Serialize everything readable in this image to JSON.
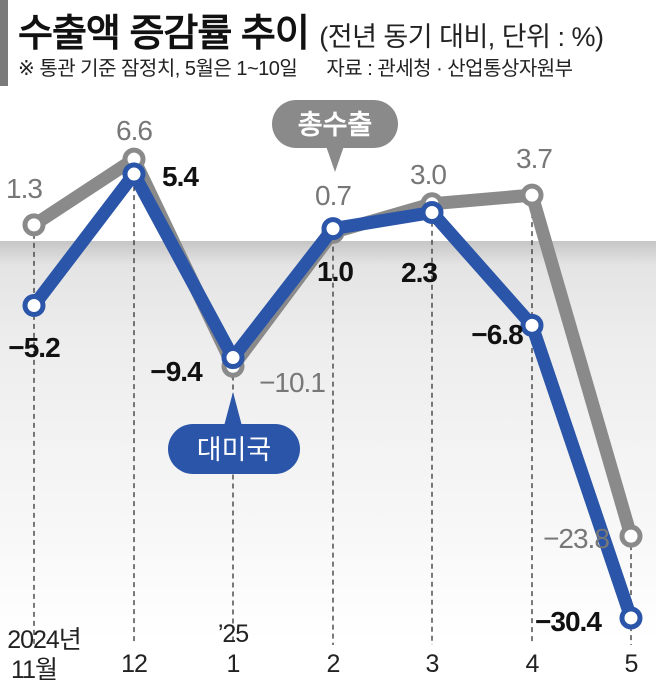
{
  "header": {
    "title": "수출액 증감률 추이",
    "subtitle": "(전년 동기 대비, 단위 : %)",
    "note": "※ 통관 기준 잠정치, 5월은 1~10일",
    "source": "자료 : 관세청 · 산업통상자원부"
  },
  "colors": {
    "total": "#8a8a8a",
    "us": "#2a55a8",
    "header_bar": "#7a7a7a"
  },
  "x_axis": {
    "year_labels": [
      {
        "index": 0,
        "label": "2024년"
      },
      {
        "index": 2,
        "label": "’25"
      }
    ],
    "ticks": [
      "11월",
      "12",
      "1",
      "2",
      "3",
      "4",
      "5"
    ]
  },
  "bubbles": {
    "total": "총수출",
    "us": "대미국"
  },
  "chart_data": {
    "type": "line",
    "title": "수출액 증감률 추이",
    "subtitle": "(전년 동기 대비, 단위 : %)",
    "xlabel": "",
    "ylabel": "%",
    "categories": [
      "2024년 11월",
      "12",
      "’25 1",
      "2",
      "3",
      "4",
      "5"
    ],
    "series": [
      {
        "name": "총수출",
        "values": [
          1.3,
          6.6,
          -10.1,
          0.7,
          3.0,
          3.7,
          -23.8
        ]
      },
      {
        "name": "대미국",
        "values": [
          -5.2,
          5.4,
          -9.4,
          1.0,
          2.3,
          -6.8,
          -30.4
        ]
      }
    ],
    "labels": {
      "총수출": [
        "1.3",
        "6.6",
        "−10.1",
        "0.7",
        "3.0",
        "3.7",
        "−23.8"
      ],
      "대미국": [
        "−5.2",
        "5.4",
        "−9.4",
        "1.0",
        "2.3",
        "−6.8",
        "−30.4"
      ]
    },
    "ylim": [
      -31,
      8
    ],
    "grid": false,
    "legend": "callout bubbles",
    "annotations": [
      "※ 통관 기준 잠정치, 5월은 1~10일",
      "자료 : 관세청 · 산업통상자원부"
    ]
  }
}
